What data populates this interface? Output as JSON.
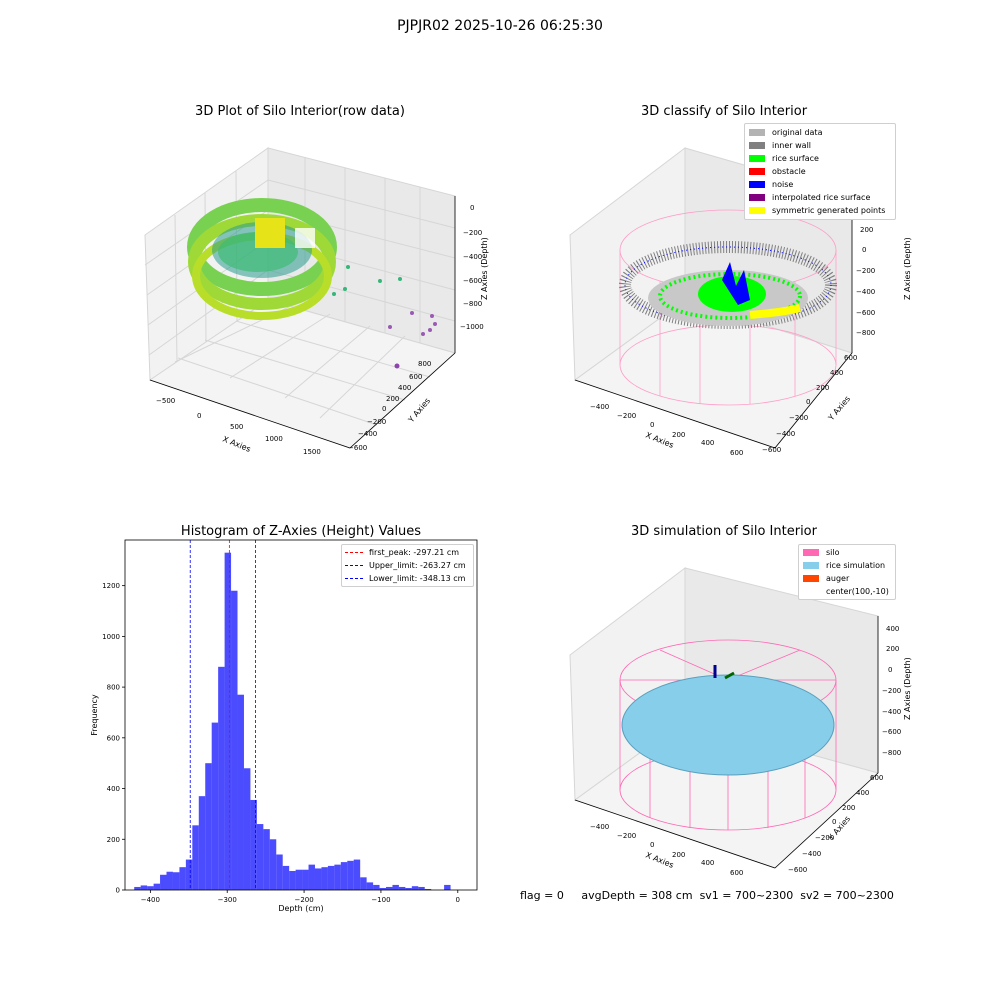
{
  "suptitle": "PJPJR02 2025-10-26 06:25:30",
  "panels": {
    "raw": {
      "title": "3D Plot of Silo Interior(row data)",
      "xlabel": "X Axies",
      "ylabel": "Y Axies",
      "zlabel": "Z Axies (Depth)",
      "xticks": [
        "−500",
        "0",
        "500",
        "1000",
        "1500"
      ],
      "yticks": [
        "800",
        "600",
        "400",
        "200",
        "0",
        "−200",
        "−400",
        "−600"
      ],
      "zticks": [
        "0",
        "−200",
        "−400",
        "−600",
        "−800",
        "−1000"
      ]
    },
    "classify": {
      "title": "3D classify of Silo Interior",
      "xlabel": "X Axies",
      "ylabel": "Y Axies",
      "zlabel": "Z Axies (Depth)",
      "xticks": [
        "−400",
        "−200",
        "0",
        "200",
        "400",
        "600"
      ],
      "yticks": [
        "600",
        "400",
        "200",
        "0",
        "−200",
        "−400",
        "−600"
      ],
      "zticks": [
        "400",
        "200",
        "0",
        "−200",
        "−400",
        "−600",
        "−800"
      ],
      "legend": [
        {
          "label": "original data",
          "color": "#b3b3b3"
        },
        {
          "label": "inner wall",
          "color": "#808080"
        },
        {
          "label": "rice surface",
          "color": "#00ff00"
        },
        {
          "label": "obstacle",
          "color": "#ff0000"
        },
        {
          "label": "noise",
          "color": "#0000ff"
        },
        {
          "label": "interpolated rice surface",
          "color": "#800080"
        },
        {
          "label": "symmetric generated points",
          "color": "#ffff00"
        }
      ]
    },
    "histogram": {
      "title": "Histogram of Z-Axies (Height) Values",
      "xlabel": "Depth (cm)",
      "ylabel": "Frequency",
      "legend": [
        {
          "label": "first_peak: -297.21 cm",
          "color": "#ff0000"
        },
        {
          "label": "Upper_limit: -263.27 cm",
          "color": "#0000ff"
        },
        {
          "label": "Lower_limit: -348.13 cm",
          "color": "#0000ff"
        }
      ]
    },
    "simulation": {
      "title": "3D simulation of Silo Interior",
      "xlabel": "X Axies",
      "ylabel": "Y Axies",
      "zlabel": "Z Axies (Depth)",
      "xticks": [
        "−400",
        "−200",
        "0",
        "200",
        "400",
        "600"
      ],
      "yticks": [
        "600",
        "400",
        "200",
        "0",
        "−200",
        "−400",
        "−600"
      ],
      "zticks": [
        "400",
        "200",
        "0",
        "−200",
        "−400",
        "−600",
        "−800"
      ],
      "legend": [
        {
          "label": "silo",
          "color": "#ff69b4"
        },
        {
          "label": "rice simulation",
          "color": "#87ceeb"
        },
        {
          "label": "auger",
          "color": "#ff4500"
        },
        {
          "label": "center(100,-10)",
          "color": ""
        }
      ]
    }
  },
  "footer": {
    "flag": "flag = 0",
    "avg": "avgDepth = 308 cm",
    "sv1": "sv1 = 700~2300",
    "sv2": "sv2 = 700~2300"
  },
  "chart_data": [
    {
      "type": "bar",
      "title": "Histogram of Z-Axies (Height) Values",
      "xlabel": "Depth (cm)",
      "ylabel": "Frequency",
      "xlim": [
        -433,
        25
      ],
      "ylim": [
        0,
        1380
      ],
      "xticks": [
        -400,
        -300,
        -200,
        -100,
        0
      ],
      "yticks": [
        0,
        200,
        400,
        600,
        800,
        1000,
        1200
      ],
      "bin_width": 8.4,
      "bin_start": -421,
      "values": [
        12,
        18,
        15,
        25,
        60,
        72,
        70,
        90,
        120,
        255,
        370,
        500,
        660,
        880,
        1330,
        1180,
        770,
        480,
        355,
        260,
        240,
        200,
        140,
        95,
        75,
        80,
        80,
        100,
        85,
        90,
        95,
        100,
        110,
        115,
        120,
        50,
        30,
        20,
        8,
        12,
        20,
        12,
        8,
        15,
        12,
        4,
        0,
        0,
        20
      ],
      "bar_color": "#0000ff",
      "vlines": [
        {
          "label": "first_peak: -297.21 cm",
          "x": -297.21,
          "color": "#ff0000"
        },
        {
          "label": "Upper_limit: -263.27 cm",
          "x": -263.27,
          "color": "#0000ff"
        },
        {
          "label": "Lower_limit: -348.13 cm",
          "x": -348.13,
          "color": "#0000ff"
        }
      ],
      "legend_position": "upper-right"
    },
    {
      "type": "scatter",
      "title": "3D Plot of Silo Interior(row data)",
      "description_series": "3D point cloud of silo interior colored by depth"
    },
    {
      "type": "scatter",
      "title": "3D classify of Silo Interior",
      "series": [
        {
          "name": "original data"
        },
        {
          "name": "inner wall"
        },
        {
          "name": "rice surface"
        },
        {
          "name": "obstacle"
        },
        {
          "name": "noise"
        },
        {
          "name": "interpolated rice surface"
        },
        {
          "name": "symmetric generated points"
        }
      ]
    },
    {
      "type": "scatter",
      "title": "3D simulation of Silo Interior",
      "series": [
        {
          "name": "silo"
        },
        {
          "name": "rice simulation"
        },
        {
          "name": "auger"
        },
        {
          "name": "center(100,-10)"
        }
      ]
    }
  ]
}
